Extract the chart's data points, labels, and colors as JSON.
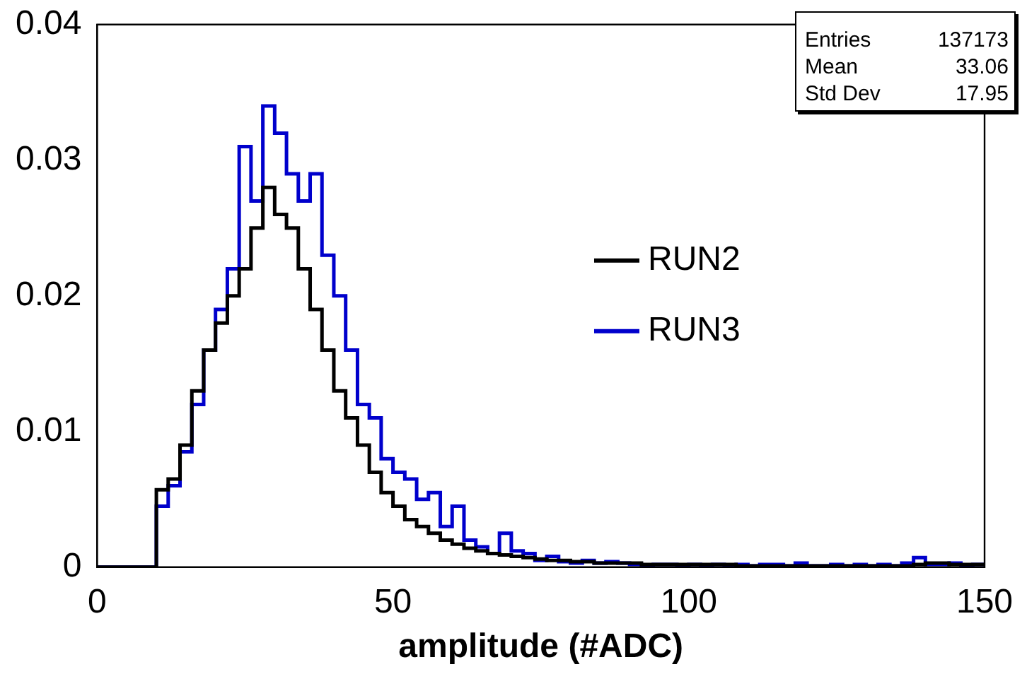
{
  "chart_data": {
    "type": "histogram",
    "xlabel": "amplitude (#ADC)",
    "bins": [
      0,
      2,
      4,
      6,
      8,
      10,
      12,
      14,
      16,
      18,
      20,
      22,
      24,
      26,
      28,
      30,
      32,
      34,
      36,
      38,
      40,
      42,
      44,
      46,
      48,
      50,
      52,
      54,
      56,
      58,
      60,
      62,
      64,
      66,
      68,
      70,
      72,
      74,
      76,
      78,
      80,
      82,
      84,
      86,
      88,
      90,
      92,
      94,
      96,
      98,
      100,
      102,
      104,
      106,
      108,
      110,
      112,
      114,
      116,
      118,
      120,
      122,
      124,
      126,
      128,
      130,
      132,
      134,
      136,
      138,
      140,
      142,
      144,
      146,
      148,
      150
    ],
    "series": [
      {
        "name": "RUN2",
        "color": "#000000",
        "values": [
          0,
          0,
          0,
          0,
          0,
          0.0057,
          0.0065,
          0.009,
          0.013,
          0.016,
          0.018,
          0.02,
          0.022,
          0.025,
          0.028,
          0.026,
          0.025,
          0.022,
          0.019,
          0.016,
          0.013,
          0.011,
          0.009,
          0.007,
          0.0055,
          0.0045,
          0.0035,
          0.003,
          0.0025,
          0.002,
          0.0017,
          0.0014,
          0.0012,
          0.001,
          0.0009,
          0.0008,
          0.0007,
          0.0006,
          0.0005,
          0.0005,
          0.0004,
          0.0004,
          0.0003,
          0.0003,
          0.0003,
          0.0003,
          0.0002,
          0.0002,
          0.0002,
          0.0002,
          0.0002,
          0.0002,
          0.0002,
          0.0002,
          0.0001,
          0.0001,
          0.0001,
          0.0001,
          0.0001,
          0.0001,
          0.0001,
          0.0001,
          0.0001,
          0.0001,
          0.0001,
          0.0001,
          0.0001,
          0.0001,
          0.0001,
          0.0002,
          0.0003,
          0.0003,
          0.0002,
          0.0002,
          0.0002
        ]
      },
      {
        "name": "RUN3",
        "color": "#0000cc",
        "values": [
          0,
          0,
          0,
          0,
          0,
          0.0045,
          0.006,
          0.0085,
          0.012,
          0.016,
          0.019,
          0.022,
          0.031,
          0.027,
          0.034,
          0.032,
          0.029,
          0.027,
          0.029,
          0.023,
          0.02,
          0.016,
          0.012,
          0.011,
          0.008,
          0.007,
          0.0065,
          0.005,
          0.0055,
          0.003,
          0.0045,
          0.002,
          0.0015,
          0.001,
          0.0025,
          0.0012,
          0.001,
          0.0005,
          0.0008,
          0.0004,
          0.0003,
          0.0005,
          0.0003,
          0.0004,
          0.0003,
          0.0002,
          0.0001,
          0.0002,
          0.0002,
          0.0001,
          0.0002,
          0.0001,
          0.0002,
          0.0001,
          0.0002,
          0.0001,
          0.0002,
          0.0002,
          0.0001,
          0.0003,
          0.0001,
          0.0001,
          0.0002,
          0.0001,
          0.0002,
          0.0001,
          0.0002,
          0.0001,
          0.0003,
          0.0007,
          0.0002,
          0.0002,
          0.0003,
          0.0001,
          0.0002
        ]
      }
    ],
    "xlim": [
      0,
      150
    ],
    "xticks": [
      0,
      50,
      100,
      150
    ],
    "ylim": [
      0,
      0.04
    ],
    "yticks": [
      0,
      0.01,
      0.02,
      0.03,
      0.04
    ],
    "grid": false,
    "legend": "right",
    "line_style": "solid",
    "marker": "none",
    "annotations": [
      "Entries",
      "137173",
      "Mean",
      "33.06",
      "Std Dev",
      "17.95"
    ]
  }
}
